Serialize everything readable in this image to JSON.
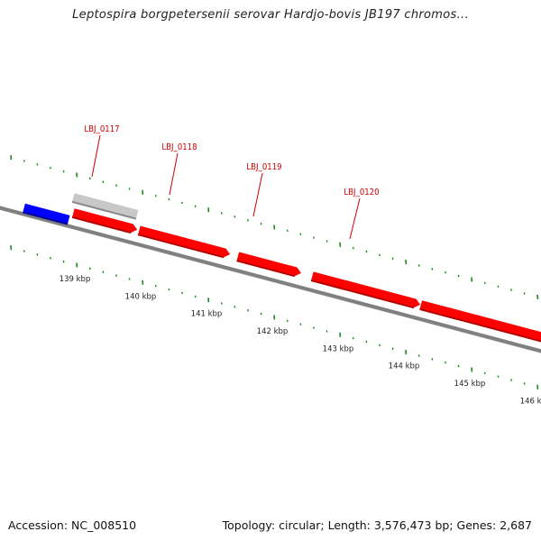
{
  "title": "Leptospira borgpetersenii serovar Hardjo-bovis JB197 chromos...",
  "footer": {
    "accession": "Accession: NC_008510",
    "topology": "Topology: circular; Length: 3,576,473 bp; Genes: 2,687"
  },
  "colors": {
    "gene_forward": "#ff0000",
    "gene_forward_dark": "#b30000",
    "gene_reverse": "#0000ff",
    "gene_reverse_dark": "#000099",
    "gene_other": "#c8c8c8",
    "gene_other_dark": "#8a8a8a",
    "backbone": "#808080",
    "ticks": "#1a8a1a",
    "labels": "#cc0000"
  },
  "genes": [
    {
      "id": "g-blue",
      "label": "",
      "start_kbp": 138.2,
      "end_kbp": 138.88,
      "strand": "reverse",
      "type": "cds"
    },
    {
      "id": "g-gray",
      "label": "",
      "start_kbp": 138.95,
      "end_kbp": 139.92,
      "strand": "forward",
      "type": "other"
    },
    {
      "id": "g-0117",
      "label": "LBJ_0117",
      "start_kbp": 138.95,
      "end_kbp": 139.92,
      "strand": "forward",
      "type": "cds"
    },
    {
      "id": "g-0118",
      "label": "LBJ_0118",
      "start_kbp": 139.95,
      "end_kbp": 141.33,
      "strand": "forward",
      "type": "cds"
    },
    {
      "id": "g-0119",
      "label": "LBJ_0119",
      "start_kbp": 141.45,
      "end_kbp": 142.41,
      "strand": "forward",
      "type": "cds"
    },
    {
      "id": "g-0120",
      "label": "LBJ_0120",
      "start_kbp": 142.58,
      "end_kbp": 144.22,
      "strand": "forward",
      "type": "cds"
    },
    {
      "id": "g-0121",
      "label": "",
      "start_kbp": 144.23,
      "end_kbp": 146.5,
      "strand": "forward",
      "type": "cds"
    }
  ],
  "scale": {
    "unit": "kbp",
    "labels": [
      "139 kbp",
      "140 kbp",
      "141 kbp",
      "142 kbp",
      "143 kbp",
      "144 kbp",
      "145 kbp",
      "146 kbp"
    ],
    "label_values_kbp": [
      139,
      140,
      141,
      142,
      143,
      144,
      145,
      146
    ]
  }
}
